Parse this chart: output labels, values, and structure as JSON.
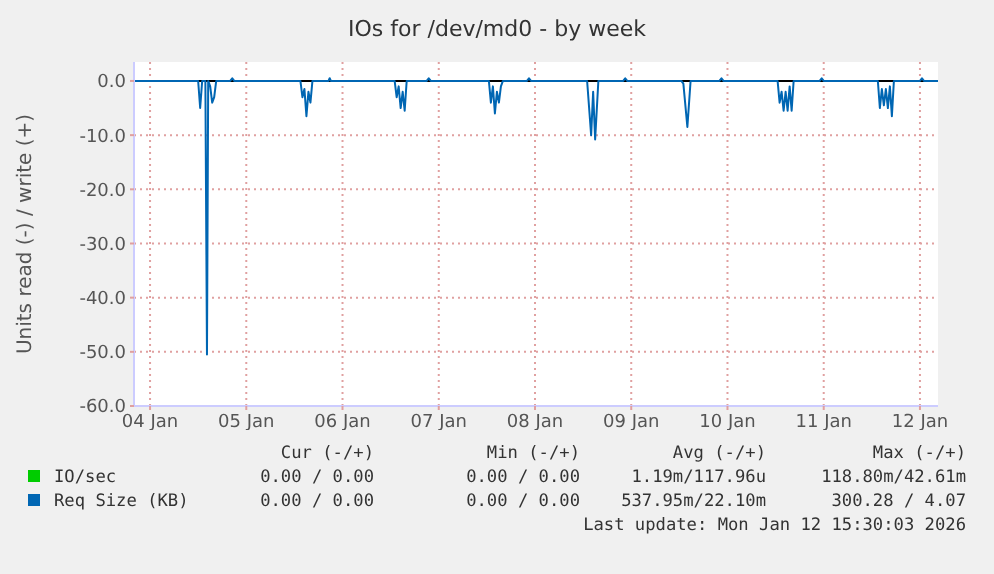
{
  "chart_data": {
    "type": "line",
    "title": "IOs for /dev/md0 - by week",
    "ylabel": "Units read (-) / write (+)",
    "xlim": [
      "2026-01-03T20:00",
      "2026-01-12T04:30"
    ],
    "xticks": [
      {
        "value": "2026-01-04",
        "label": "04 Jan"
      },
      {
        "value": "2026-01-05",
        "label": "05 Jan"
      },
      {
        "value": "2026-01-06",
        "label": "06 Jan"
      },
      {
        "value": "2026-01-07",
        "label": "07 Jan"
      },
      {
        "value": "2026-01-08",
        "label": "08 Jan"
      },
      {
        "value": "2026-01-09",
        "label": "09 Jan"
      },
      {
        "value": "2026-01-10",
        "label": "10 Jan"
      },
      {
        "value": "2026-01-11",
        "label": "11 Jan"
      },
      {
        "value": "2026-01-12",
        "label": "12 Jan"
      }
    ],
    "ylim": [
      -60,
      3.5
    ],
    "yticks": [
      {
        "value": -60,
        "label": "-60.0"
      },
      {
        "value": -50,
        "label": "-50.0"
      },
      {
        "value": -40,
        "label": "-40.0"
      },
      {
        "value": -30,
        "label": "-30.0"
      },
      {
        "value": -20,
        "label": "-20.0"
      },
      {
        "value": -10,
        "label": "-10.0"
      },
      {
        "value": 0,
        "label": "0.0"
      }
    ],
    "grid": true,
    "legend": "bottom",
    "ref_lines": [
      {
        "axis": "y",
        "value": 0,
        "color": "#000000"
      }
    ],
    "series": [
      {
        "name": "IO/sec",
        "color": "#00cc00"
      },
      {
        "name": "Req Size (KB)",
        "color": "#0066b3",
        "x": [
          "2026-01-03T20:00",
          "2026-01-04T12:00",
          "2026-01-04T12:30",
          "2026-01-04T13:00",
          "2026-01-04T13:48",
          "2026-01-04T14:12",
          "2026-01-04T14:30",
          "2026-01-04T15:00",
          "2026-01-04T15:30",
          "2026-01-04T16:00",
          "2026-01-04T16:30",
          "2026-01-04T20:00",
          "2026-01-04T20:30",
          "2026-01-04T21:00",
          "2026-01-05T13:30",
          "2026-01-05T14:00",
          "2026-01-05T14:30",
          "2026-01-05T15:00",
          "2026-01-05T15:30",
          "2026-01-05T16:00",
          "2026-01-05T16:30",
          "2026-01-05T20:30",
          "2026-01-05T20:48",
          "2026-01-05T21:06",
          "2026-01-06T13:00",
          "2026-01-06T13:30",
          "2026-01-06T14:00",
          "2026-01-06T14:30",
          "2026-01-06T15:00",
          "2026-01-06T15:30",
          "2026-01-06T16:00",
          "2026-01-06T21:00",
          "2026-01-06T21:30",
          "2026-01-06T22:00",
          "2026-01-07T12:30",
          "2026-01-07T13:00",
          "2026-01-07T13:30",
          "2026-01-07T14:00",
          "2026-01-07T14:30",
          "2026-01-07T15:00",
          "2026-01-07T15:30",
          "2026-01-07T16:00",
          "2026-01-07T22:00",
          "2026-01-07T22:30",
          "2026-01-07T23:00",
          "2026-01-08T13:00",
          "2026-01-08T14:00",
          "2026-01-08T14:30",
          "2026-01-08T15:00",
          "2026-01-08T15:48",
          "2026-01-08T22:00",
          "2026-01-08T22:30",
          "2026-01-08T23:00",
          "2026-01-09T12:30",
          "2026-01-09T13:00",
          "2026-01-09T14:00",
          "2026-01-09T14:48",
          "2026-01-09T22:00",
          "2026-01-09T22:30",
          "2026-01-09T23:00",
          "2026-01-10T12:30",
          "2026-01-10T13:00",
          "2026-01-10T13:30",
          "2026-01-10T14:00",
          "2026-01-10T14:30",
          "2026-01-10T15:00",
          "2026-01-10T15:30",
          "2026-01-10T16:00",
          "2026-01-10T16:30",
          "2026-01-10T23:00",
          "2026-01-10T23:30",
          "2026-01-11T00:00",
          "2026-01-11T13:30",
          "2026-01-11T14:00",
          "2026-01-11T14:30",
          "2026-01-11T15:00",
          "2026-01-11T15:30",
          "2026-01-11T16:00",
          "2026-01-11T16:30",
          "2026-01-11T17:00",
          "2026-01-11T17:30",
          "2026-01-12T00:00",
          "2026-01-12T00:30",
          "2026-01-12T01:00",
          "2026-01-12T04:30"
        ],
        "values": [
          0,
          0,
          -5,
          0,
          0,
          -50.5,
          0,
          -1,
          -4,
          -3,
          0,
          0,
          0.5,
          0,
          0,
          -3,
          -1.5,
          -6.5,
          -2,
          -4,
          0,
          0,
          0.5,
          0,
          0,
          -3,
          -1,
          -5,
          -2,
          -5.5,
          0,
          0,
          0.5,
          0,
          0,
          -4,
          -1,
          -6,
          -2,
          -4,
          -1,
          0,
          0,
          0.5,
          0,
          0,
          -10,
          -2,
          -10.8,
          0,
          0,
          0.5,
          0,
          0,
          -0.5,
          -8.5,
          0,
          0,
          0.5,
          0,
          0,
          -4,
          -2,
          -5.5,
          -2,
          -5.5,
          -1,
          -5.5,
          0,
          0,
          0.5,
          0,
          0,
          -5,
          -1.5,
          -4.5,
          -1.5,
          -5,
          -1,
          -6.5,
          0,
          0,
          0.5,
          0,
          0
        ]
      }
    ],
    "annotations": [
      "Cur (-/+)",
      "Min (-/+)",
      "Avg (-/+)",
      "Max (-/+)",
      "0.00 / 0.00",
      "0.00 / 0.00",
      "1.19m/117.96u",
      "118.80m/42.61m",
      "0.00 / 0.00",
      "0.00 / 0.00",
      "537.95m/22.10m",
      "300.28 / 4.07",
      "Last update: Mon Jan 12 15:30:03 2026"
    ]
  }
}
